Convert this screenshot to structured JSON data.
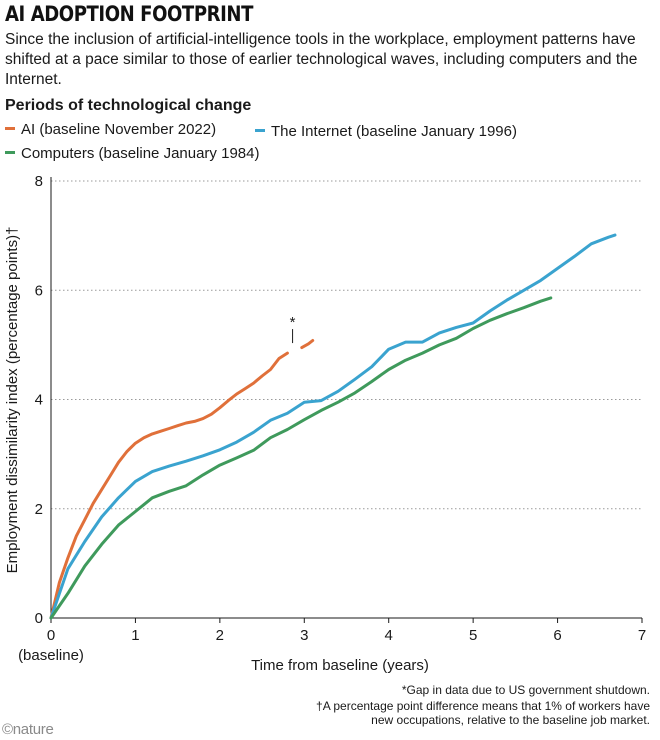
{
  "header": {
    "title": "AI ADOPTION FOOTPRINT",
    "subtitle": "Since the inclusion of artificial-intelligence tools in the workplace, employment patterns have shifted at a pace similar to those of earlier technological waves, including computers and the Internet."
  },
  "legend": {
    "title": "Periods of technological change",
    "items": [
      {
        "label": "AI (baseline November 2022)",
        "color": "#e0703a"
      },
      {
        "label": "The Internet (baseline January 1996)",
        "color": "#3aa3cf"
      },
      {
        "label": "Computers (baseline January 1984)",
        "color": "#3f9a5c"
      }
    ]
  },
  "footnotes": {
    "gap": "*Gap in data due to US government shutdown.",
    "pp_line1": "†A percentage point difference means that 1% of workers have",
    "pp_line2": "new occupations, relative to the baseline job market."
  },
  "credit": "©nature",
  "chart_data": {
    "type": "line",
    "title": "AI ADOPTION FOOTPRINT",
    "xlabel": "Time from baseline (years)",
    "ylabel": "Employment dissimilarity index (percentage points)†",
    "xlim": [
      0,
      7
    ],
    "ylim": [
      0,
      8
    ],
    "x_ticks": [
      "0",
      "1",
      "2",
      "3",
      "4",
      "5",
      "6",
      "7"
    ],
    "x_tick_sublabel": "(baseline)",
    "y_ticks": [
      "0",
      "2",
      "4",
      "6",
      "8"
    ],
    "grid": "horizontal dotted",
    "annotation": "*",
    "series": [
      {
        "name": "AI (baseline November 2022)",
        "color": "#e0703a",
        "segments": [
          {
            "x": [
              0,
              0.1,
              0.2,
              0.3,
              0.4,
              0.5,
              0.6,
              0.7,
              0.8,
              0.9,
              1.0,
              1.1,
              1.2,
              1.3,
              1.4,
              1.5,
              1.6,
              1.7,
              1.8,
              1.9,
              2.0,
              2.1,
              2.2,
              2.3,
              2.4,
              2.5,
              2.6,
              2.7,
              2.8
            ],
            "y": [
              0,
              0.65,
              1.1,
              1.5,
              1.8,
              2.1,
              2.35,
              2.6,
              2.85,
              3.05,
              3.2,
              3.3,
              3.37,
              3.42,
              3.47,
              3.52,
              3.57,
              3.6,
              3.65,
              3.73,
              3.85,
              3.98,
              4.1,
              4.2,
              4.3,
              4.43,
              4.55,
              4.75,
              4.85
            ]
          },
          {
            "x": [
              2.97,
              3.05,
              3.1
            ],
            "y": [
              4.95,
              5.02,
              5.08
            ]
          }
        ]
      },
      {
        "name": "The Internet (baseline January 1996)",
        "color": "#3aa3cf",
        "segments": [
          {
            "x": [
              0,
              0.2,
              0.4,
              0.6,
              0.8,
              1.0,
              1.2,
              1.4,
              1.6,
              1.8,
              2.0,
              2.2,
              2.4,
              2.6,
              2.8,
              3.0,
              3.2,
              3.4,
              3.6,
              3.8,
              4.0,
              4.2,
              4.4,
              4.6,
              4.8,
              5.0,
              5.2,
              5.4,
              5.6,
              5.8,
              6.0,
              6.2,
              6.4,
              6.6,
              6.68
            ],
            "y": [
              0,
              0.9,
              1.4,
              1.85,
              2.2,
              2.5,
              2.68,
              2.78,
              2.87,
              2.97,
              3.08,
              3.22,
              3.4,
              3.62,
              3.75,
              3.95,
              3.98,
              4.15,
              4.37,
              4.6,
              4.92,
              5.05,
              5.05,
              5.22,
              5.32,
              5.4,
              5.62,
              5.82,
              6.0,
              6.18,
              6.4,
              6.62,
              6.85,
              6.97,
              7.01
            ]
          }
        ]
      },
      {
        "name": "Computers (baseline January 1984)",
        "color": "#3f9a5c",
        "segments": [
          {
            "x": [
              0,
              0.2,
              0.4,
              0.6,
              0.8,
              1.0,
              1.2,
              1.4,
              1.6,
              1.8,
              2.0,
              2.2,
              2.4,
              2.6,
              2.8,
              3.0,
              3.2,
              3.4,
              3.6,
              3.8,
              4.0,
              4.2,
              4.4,
              4.6,
              4.8,
              5.0,
              5.2,
              5.4,
              5.6,
              5.8,
              5.92
            ],
            "y": [
              0,
              0.45,
              0.95,
              1.35,
              1.7,
              1.95,
              2.2,
              2.32,
              2.42,
              2.62,
              2.8,
              2.93,
              3.07,
              3.3,
              3.45,
              3.63,
              3.8,
              3.95,
              4.12,
              4.33,
              4.55,
              4.72,
              4.85,
              5.0,
              5.12,
              5.3,
              5.45,
              5.57,
              5.68,
              5.8,
              5.86
            ]
          }
        ]
      }
    ]
  }
}
